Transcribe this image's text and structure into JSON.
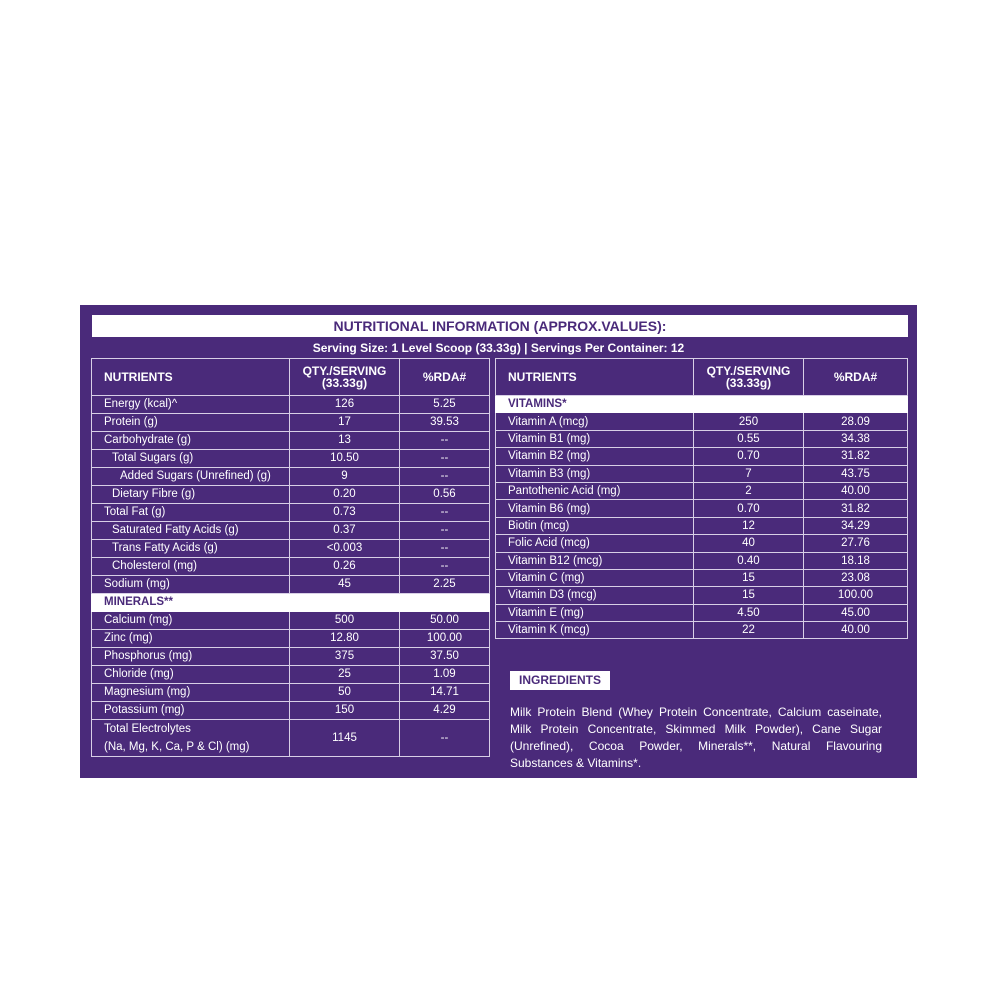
{
  "title": "NUTRITIONAL INFORMATION (APPROX.VALUES):",
  "serving": "Serving Size: 1 Level Scoop (33.33g) | Servings Per Container: 12",
  "colors": {
    "panel": "#4a2a7a",
    "text": "#ffffff"
  },
  "left_table": {
    "headers": [
      "NUTRIENTS",
      "QTY./SERVING\n(33.33g)",
      "%RDA#"
    ],
    "rows": [
      {
        "name": "Energy (kcal)^",
        "qty": "126",
        "rda": "5.25",
        "indent": 0
      },
      {
        "name": "Protein (g)",
        "qty": "17",
        "rda": "39.53",
        "indent": 0
      },
      {
        "name": "Carbohydrate (g)",
        "qty": "13",
        "rda": "--",
        "indent": 0
      },
      {
        "name": "Total Sugars (g)",
        "qty": "10.50",
        "rda": "--",
        "indent": 1
      },
      {
        "name": "Added Sugars (Unrefined) (g)",
        "qty": "9",
        "rda": "--",
        "indent": 2
      },
      {
        "name": "Dietary Fibre (g)",
        "qty": "0.20",
        "rda": "0.56",
        "indent": 1
      },
      {
        "name": "Total Fat (g)",
        "qty": "0.73",
        "rda": "--",
        "indent": 0
      },
      {
        "name": "Saturated Fatty Acids (g)",
        "qty": "0.37",
        "rda": "--",
        "indent": 1
      },
      {
        "name": "Trans Fatty Acids (g)",
        "qty": "<0.003",
        "rda": "--",
        "indent": 1
      },
      {
        "name": "Cholesterol (mg)",
        "qty": "0.26",
        "rda": "--",
        "indent": 1
      },
      {
        "name": "Sodium (mg)",
        "qty": "45",
        "rda": "2.25",
        "indent": 0
      },
      {
        "section": "MINERALS**"
      },
      {
        "name": "Calcium (mg)",
        "qty": "500",
        "rda": "50.00",
        "indent": 0
      },
      {
        "name": "Zinc (mg)",
        "qty": "12.80",
        "rda": "100.00",
        "indent": 0
      },
      {
        "name": "Phosphorus (mg)",
        "qty": "375",
        "rda": "37.50",
        "indent": 0
      },
      {
        "name": "Chloride (mg)",
        "qty": "25",
        "rda": "1.09",
        "indent": 0
      },
      {
        "name": "Magnesium (mg)",
        "qty": "50",
        "rda": "14.71",
        "indent": 0
      },
      {
        "name": "Potassium (mg)",
        "qty": "150",
        "rda": "4.29",
        "indent": 0
      },
      {
        "name": "Total Electrolytes\n(Na, Mg, K, Ca, P & Cl) (mg)",
        "qty": "1145",
        "rda": "--",
        "indent": 0,
        "two": true
      }
    ]
  },
  "right_table": {
    "headers": [
      "NUTRIENTS",
      "QTY./SERVING\n(33.33g)",
      "%RDA#"
    ],
    "rows": [
      {
        "section": "VITAMINS*"
      },
      {
        "name": "Vitamin A (mcg)",
        "qty": "250",
        "rda": "28.09"
      },
      {
        "name": "Vitamin B1 (mg)",
        "qty": "0.55",
        "rda": "34.38"
      },
      {
        "name": "Vitamin B2 (mg)",
        "qty": "0.70",
        "rda": "31.82"
      },
      {
        "name": "Vitamin B3 (mg)",
        "qty": "7",
        "rda": "43.75"
      },
      {
        "name": "Pantothenic Acid (mg)",
        "qty": "2",
        "rda": "40.00"
      },
      {
        "name": "Vitamin B6 (mg)",
        "qty": "0.70",
        "rda": "31.82"
      },
      {
        "name": "Biotin (mcg)",
        "qty": "12",
        "rda": "34.29"
      },
      {
        "name": "Folic Acid (mcg)",
        "qty": "40",
        "rda": "27.76"
      },
      {
        "name": "Vitamin B12 (mcg)",
        "qty": "0.40",
        "rda": "18.18"
      },
      {
        "name": "Vitamin C (mg)",
        "qty": "15",
        "rda": "23.08"
      },
      {
        "name": "Vitamin D3 (mcg)",
        "qty": "15",
        "rda": "100.00"
      },
      {
        "name": "Vitamin E (mg)",
        "qty": "4.50",
        "rda": "45.00"
      },
      {
        "name": "Vitamin K (mcg)",
        "qty": "22",
        "rda": "40.00"
      }
    ]
  },
  "ingredients": {
    "label": "INGREDIENTS",
    "text": "Milk Protein Blend (Whey Protein Concentrate, Calcium caseinate, Milk Protein Concentrate, Skimmed Milk Powder), Cane Sugar (Unrefined), Cocoa Powder, Minerals**, Natural Flavouring Substances & Vitamins*."
  }
}
